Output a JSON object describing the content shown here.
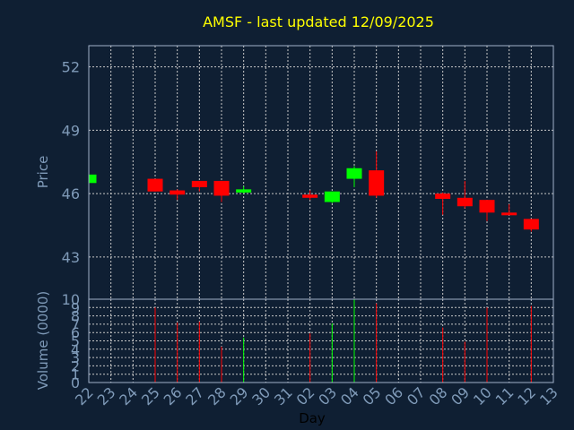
{
  "chart_data": [
    {
      "type": "candlestick",
      "title": "AMSF - last updated 12/09/2025",
      "ylabel": "Price",
      "ylim": [
        41,
        53
      ],
      "yticks": [
        43,
        46,
        49,
        52
      ],
      "grid": true,
      "colors": {
        "up": "#00ff00",
        "down": "#ff0000",
        "background": "#0f1f33",
        "text": "#7f9ab8",
        "title": "#ffff00"
      },
      "series": [
        {
          "day": "22",
          "open": 46.5,
          "high": 46.9,
          "low": 46.4,
          "close": 46.9
        },
        {
          "day": "25",
          "open": 46.7,
          "high": 46.7,
          "low": 46.1,
          "close": 46.1
        },
        {
          "day": "26",
          "open": 46.15,
          "high": 46.2,
          "low": 45.7,
          "close": 45.95
        },
        {
          "day": "27",
          "open": 46.6,
          "high": 46.6,
          "low": 46.1,
          "close": 46.3
        },
        {
          "day": "28",
          "open": 46.6,
          "high": 46.6,
          "low": 45.6,
          "close": 45.9
        },
        {
          "day": "29",
          "open": 46.05,
          "high": 46.35,
          "low": 46.0,
          "close": 46.2
        },
        {
          "day": "02",
          "open": 45.95,
          "high": 46.15,
          "low": 45.7,
          "close": 45.8
        },
        {
          "day": "03",
          "open": 45.6,
          "high": 46.1,
          "low": 45.55,
          "close": 46.1
        },
        {
          "day": "04",
          "open": 46.7,
          "high": 47.3,
          "low": 46.3,
          "close": 47.2
        },
        {
          "day": "05",
          "open": 47.1,
          "high": 48.0,
          "low": 45.8,
          "close": 45.9
        },
        {
          "day": "08",
          "open": 46.0,
          "high": 46.05,
          "low": 45.0,
          "close": 45.75
        },
        {
          "day": "09",
          "open": 45.8,
          "high": 46.6,
          "low": 45.3,
          "close": 45.4
        },
        {
          "day": "10",
          "open": 45.7,
          "high": 45.7,
          "low": 44.7,
          "close": 45.1
        },
        {
          "day": "11",
          "open": 45.1,
          "high": 45.5,
          "low": 45.0,
          "close": 45.0
        },
        {
          "day": "12",
          "open": 44.8,
          "high": 44.8,
          "low": 44.2,
          "close": 44.3
        }
      ]
    },
    {
      "type": "bar",
      "ylabel": "Volume (0000)",
      "xlabel": "Day",
      "ylim": [
        0,
        10
      ],
      "yticks": [
        0,
        1,
        2,
        3,
        4,
        5,
        6,
        7,
        8,
        9,
        10
      ],
      "categories": [
        "22",
        "23",
        "24",
        "25",
        "26",
        "27",
        "28",
        "29",
        "30",
        "31",
        "02",
        "03",
        "04",
        "05",
        "06",
        "07",
        "08",
        "09",
        "10",
        "11",
        "12",
        "13"
      ],
      "values": [
        null,
        null,
        null,
        9.0,
        7.2,
        7.3,
        4.3,
        5.4,
        null,
        null,
        5.9,
        7.1,
        10.0,
        9.5,
        null,
        null,
        6.6,
        4.9,
        9.0,
        null,
        9.2,
        null
      ],
      "up_days": [
        "22",
        "29",
        "03",
        "04"
      ]
    }
  ]
}
